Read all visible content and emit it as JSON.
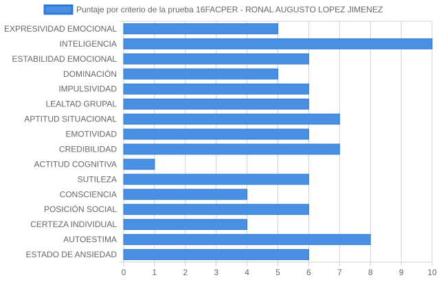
{
  "chart_data": {
    "type": "bar",
    "orientation": "horizontal",
    "categories": [
      "EXPRESIVIDAD EMOCIONAL",
      "INTELIGENCIA",
      "ESTABILIDAD EMOCIONAL",
      "DOMINACIÓN",
      "IMPULSIVIDAD",
      "LEALTAD GRUPAL",
      "APTITUD SITUACIONAL",
      "EMOTIVIDAD",
      "CREDIBILIDAD",
      "ACTITUD COGNITIVA",
      "SUTILEZA",
      "CONSCIENCIA",
      "POSICIÓN SOCIAL",
      "CERTEZA INDIVIDUAL",
      "AUTOESTIMA",
      "ESTADO DE ANSIEDAD"
    ],
    "series": [
      {
        "name": "Puntaje por criterio de la prueba 16FACPER - RONAL AUGUSTO LOPEZ JIMENEZ",
        "values": [
          5,
          10,
          6,
          5,
          6,
          6,
          7,
          6,
          7,
          1,
          6,
          4,
          6,
          4,
          8,
          6
        ]
      }
    ],
    "xlim": [
      0,
      10
    ],
    "xticks": [
      "0",
      "1",
      "2",
      "3",
      "4",
      "5",
      "6",
      "7",
      "8",
      "9",
      "10"
    ],
    "grid": true,
    "legend_position": "top",
    "colors": {
      "bar_fill": "#4a90e2",
      "bar_stroke": "#2f7ad8",
      "grid": "#d0d0d0",
      "text": "#666666"
    }
  }
}
